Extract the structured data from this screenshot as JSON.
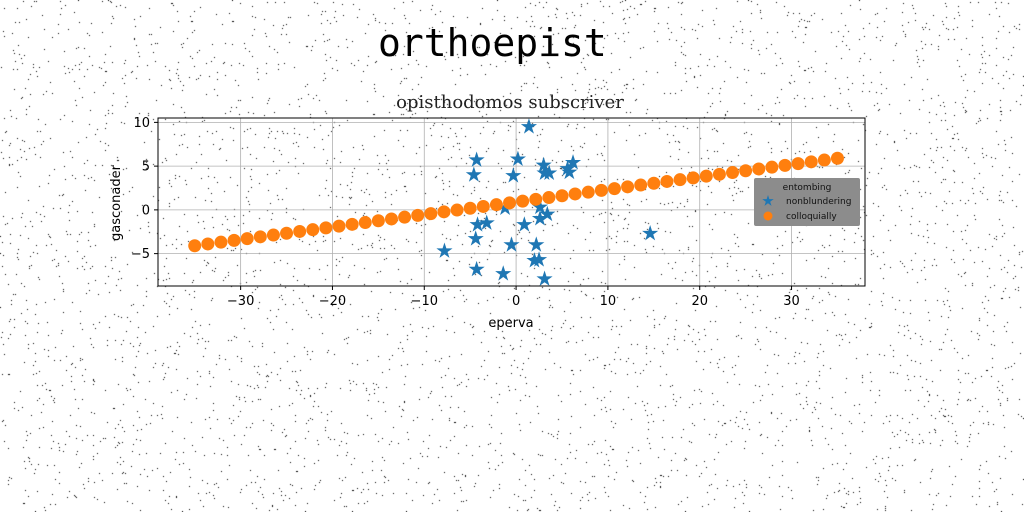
{
  "figure": {
    "suptitle": "orthoepist"
  },
  "chart_data": {
    "type": "scatter",
    "title": "opisthodomos subscriver",
    "xlabel": "eperva",
    "ylabel": "gasconader",
    "xlim": [
      -39,
      38
    ],
    "ylim": [
      -8.7,
      10.5
    ],
    "xticks": [
      -30,
      -20,
      -10,
      0,
      10,
      20,
      30
    ],
    "yticks": [
      -5,
      0,
      5,
      10
    ],
    "xtick_labels": [
      "−30",
      "−20",
      "−10",
      "0",
      "10",
      "20",
      "30"
    ],
    "ytick_labels": [
      "−5",
      "0",
      "5",
      "10"
    ],
    "grid": true,
    "legend": {
      "title": "entombing",
      "placement": "right"
    },
    "series": [
      {
        "name": "nonblundering",
        "marker": "star",
        "color": "#1f77b4",
        "points": [
          [
            1.4,
            9.5
          ],
          [
            -4.3,
            5.7
          ],
          [
            0.2,
            5.8
          ],
          [
            3.0,
            5.1
          ],
          [
            6.2,
            5.4
          ],
          [
            -4.6,
            4.0
          ],
          [
            -0.3,
            3.9
          ],
          [
            3.1,
            4.2
          ],
          [
            3.6,
            4.2
          ],
          [
            5.8,
            4.3
          ],
          [
            5.6,
            4.7
          ],
          [
            -1.2,
            0.2
          ],
          [
            2.6,
            0.3
          ],
          [
            3.4,
            -0.5
          ],
          [
            2.6,
            -1.0
          ],
          [
            0.9,
            -1.7
          ],
          [
            -4.2,
            -1.7
          ],
          [
            -3.2,
            -1.5
          ],
          [
            14.6,
            -2.7
          ],
          [
            -4.4,
            -3.3
          ],
          [
            -0.5,
            -4.0
          ],
          [
            2.2,
            -4.0
          ],
          [
            -7.8,
            -4.7
          ],
          [
            2.0,
            -5.8
          ],
          [
            2.5,
            -5.7
          ],
          [
            -4.3,
            -6.8
          ],
          [
            -1.4,
            -7.3
          ],
          [
            3.1,
            -7.9
          ]
        ]
      },
      {
        "name": "colloquially",
        "marker": "circle",
        "color": "#ff7f0e",
        "line": {
          "x_start": -35,
          "x_end": 35,
          "count": 50,
          "y_start": -4.1,
          "y_end": 5.9
        }
      }
    ]
  }
}
